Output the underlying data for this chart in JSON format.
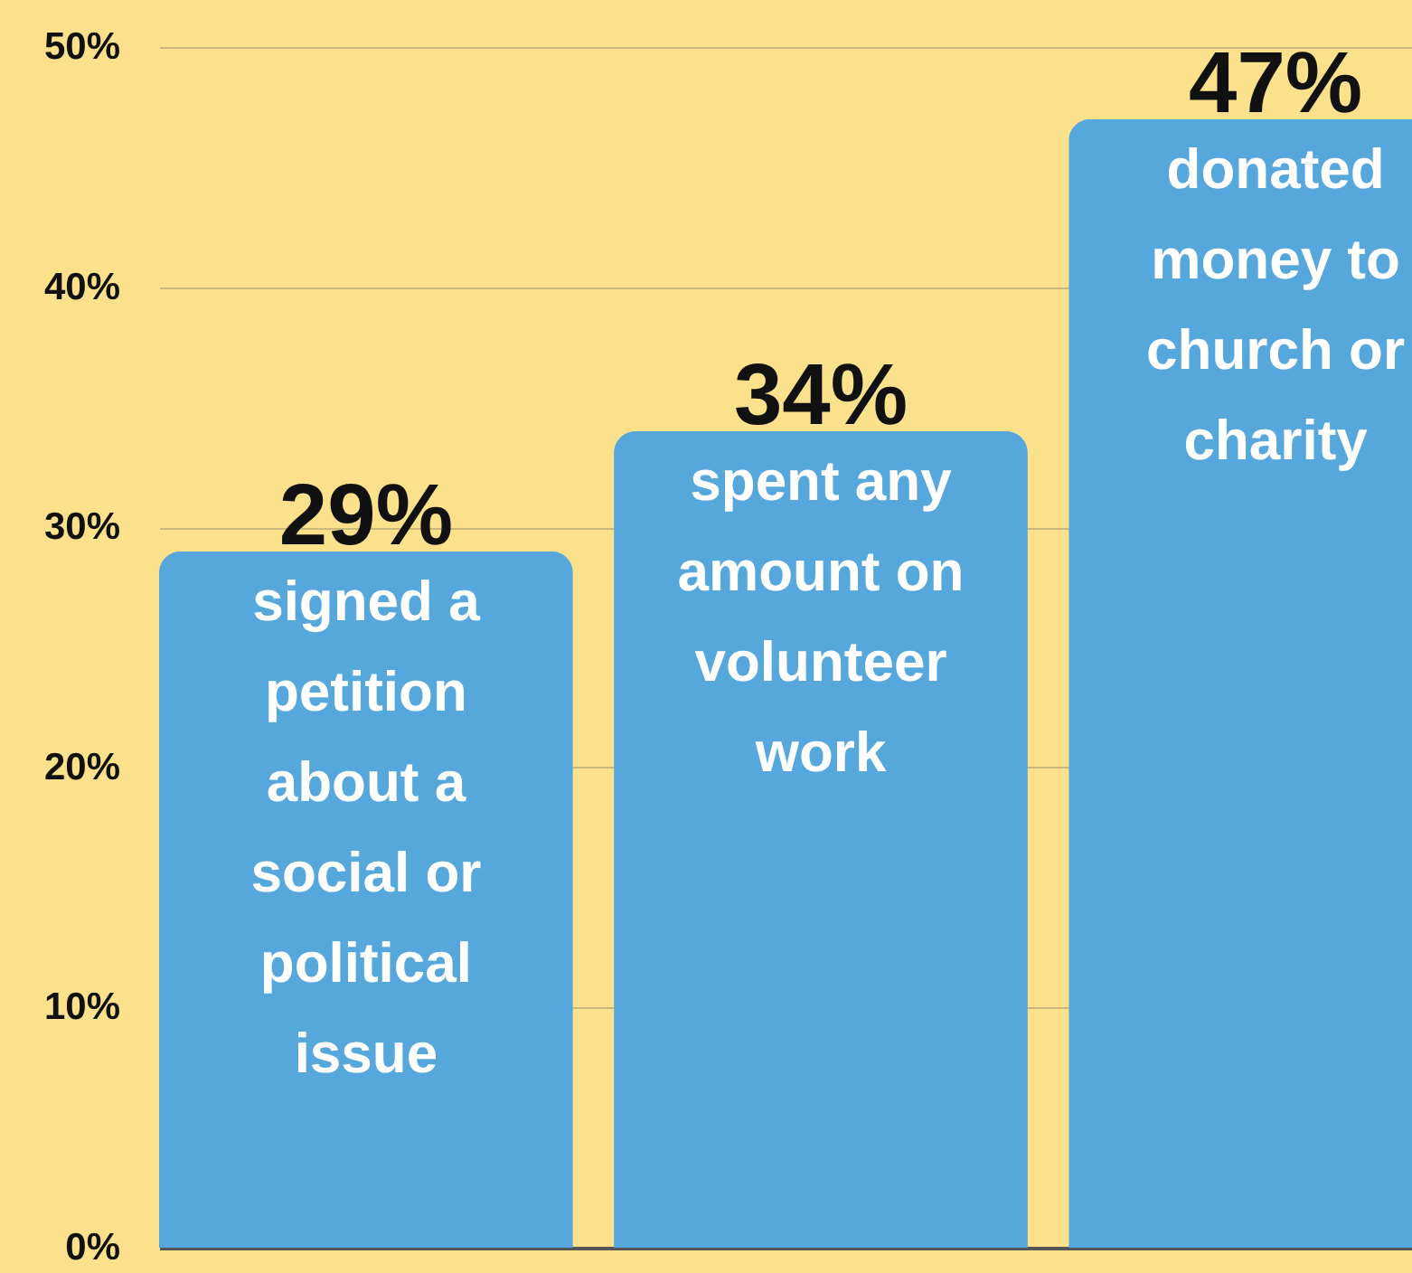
{
  "chart_data": {
    "type": "bar",
    "categories": [
      "signed a petition about a social or political issue",
      "spent any amount on volunteer work",
      "donated money to church or charity"
    ],
    "values": [
      29,
      34,
      47
    ],
    "color": "#56a7dc",
    "value_labels": [
      "29%",
      "34%",
      "47%"
    ],
    "ylim": [
      0,
      50
    ],
    "yticks": [
      {
        "value": 0,
        "label": "0%"
      },
      {
        "value": 10,
        "label": "10%"
      },
      {
        "value": 20,
        "label": "20%"
      },
      {
        "value": 30,
        "label": "30%"
      },
      {
        "value": 40,
        "label": "40%"
      },
      {
        "value": 50,
        "label": "50%"
      }
    ],
    "grid": "y"
  }
}
